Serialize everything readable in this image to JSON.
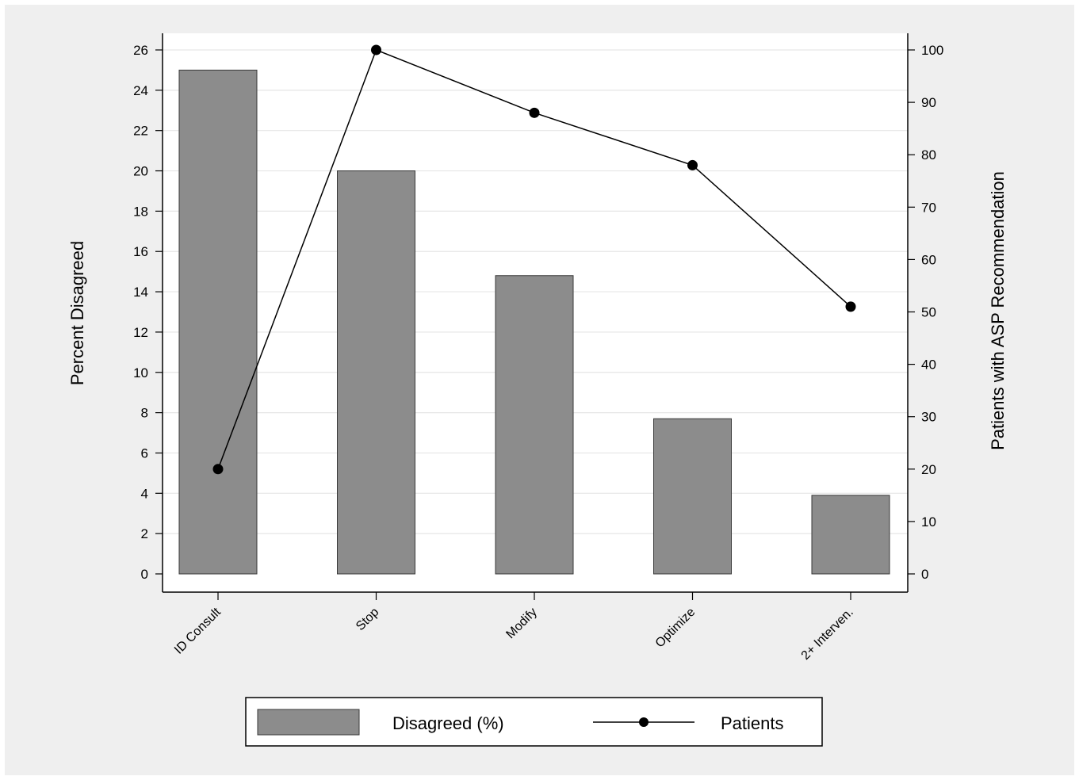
{
  "chart_data": {
    "type": "bar",
    "title": "",
    "categories": [
      "ID Consult",
      "Stop",
      "Modify",
      "Optimize",
      "2+ Interven."
    ],
    "ylabel": "Percent Disagreed",
    "y2label": "Patients with ASP Recommendation",
    "ylim": [
      0,
      26
    ],
    "y2lim": [
      0,
      100
    ],
    "yticks": [
      0,
      2,
      4,
      6,
      8,
      10,
      12,
      14,
      16,
      18,
      20,
      22,
      24,
      26
    ],
    "y2ticks": [
      0,
      10,
      20,
      30,
      40,
      50,
      60,
      70,
      80,
      90,
      100
    ],
    "grid": true,
    "legend_position": "bottom",
    "series": [
      {
        "name": "Disagreed (%)",
        "type": "bar",
        "axis": "left",
        "values": [
          25,
          20,
          14.8,
          7.7,
          3.9
        ]
      },
      {
        "name": "Patients",
        "type": "line",
        "axis": "right",
        "values": [
          20,
          100,
          88,
          78,
          51
        ]
      }
    ],
    "colors": {
      "page_background": "#ffffff",
      "outer_background": "#efefef",
      "plot_background": "#ffffff",
      "bar_fill": "#8c8c8c",
      "bar_stroke": "#3a3a3a",
      "line": "#000000",
      "grid": "#e6e6e6",
      "axis": "#000000",
      "text": "#000000"
    }
  }
}
